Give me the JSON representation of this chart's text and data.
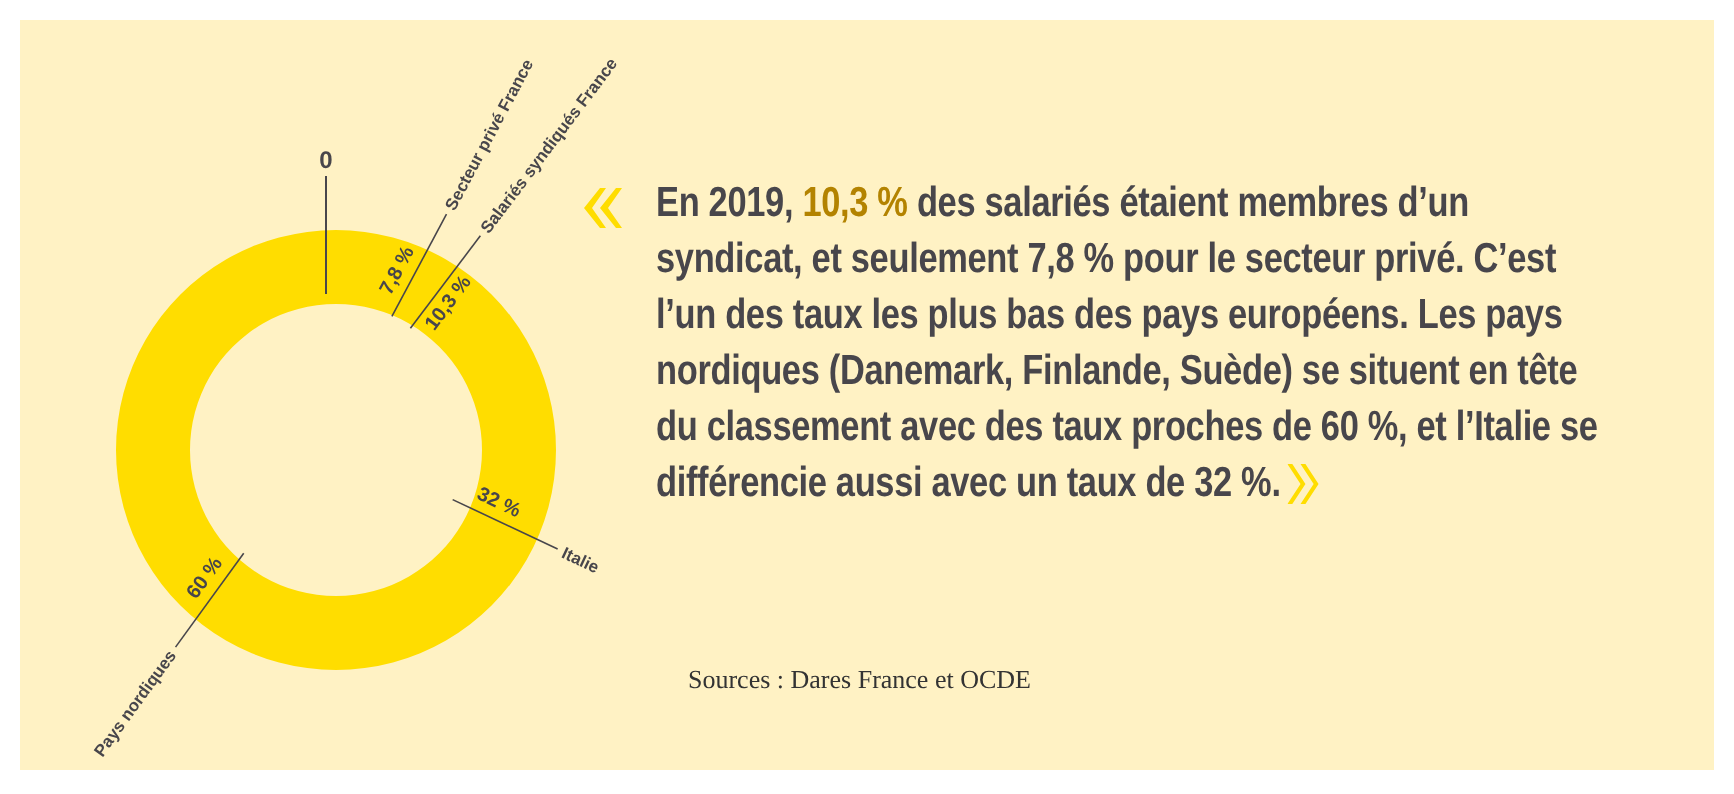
{
  "chart_data": {
    "type": "other",
    "categories": [
      "Secteur privé France",
      "Salariés syndiqués France",
      "Italie",
      "Pays nordiques"
    ],
    "values": [
      7.8,
      10.3,
      32,
      60
    ],
    "value_labels": [
      "7,8 %",
      "10,3 %",
      "32 %",
      "60 %"
    ],
    "color": "#ffdd00",
    "annotations": [
      "0",
      "En 2019, ",
      "10,3 %",
      " des salariés étaient membres d’un syndicat, et seulement 7,8 % pour le secteur privé. C’est l’un des taux les plus bas des pays européens. Les pays nordiques (Danemark, Finlande, Suède) se situent en tête du classement avec des taux proches de 60 %, et l’Italie se différencie aussi avec un taux de 32 %.",
      "Sources : Dares France et OCDE"
    ]
  }
}
